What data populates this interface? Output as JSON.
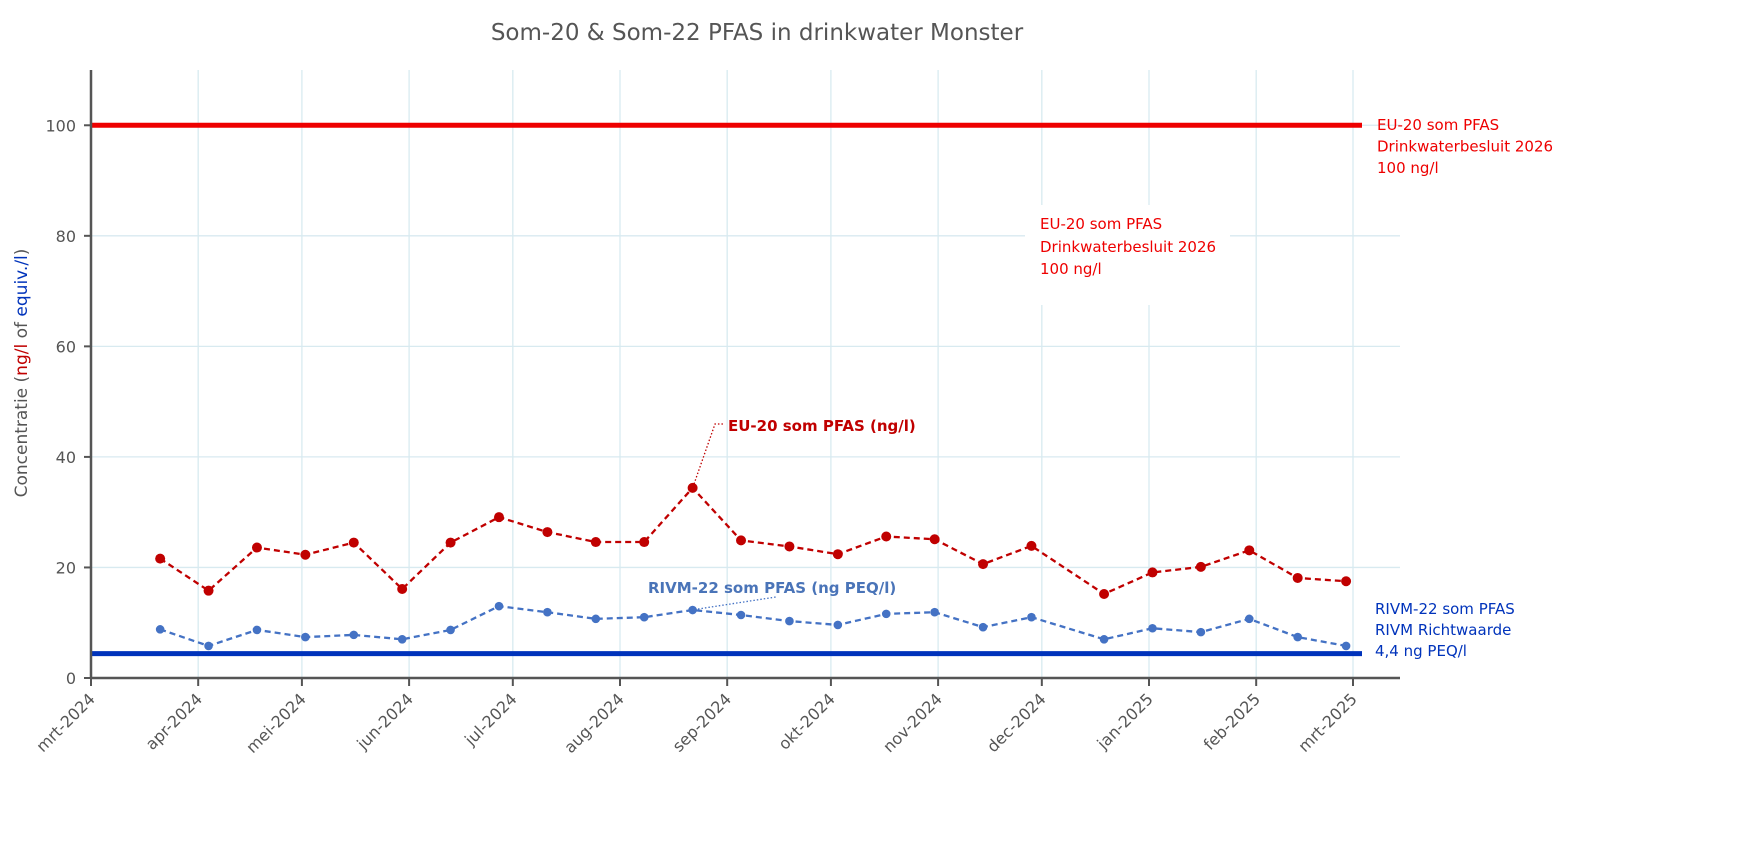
{
  "chart_data": {
    "type": "line",
    "title": "Som-20 & Som-22 PFAS in drinkwater Monster",
    "ylabel_parts": [
      {
        "text": "Concentratie (",
        "color": "#555555"
      },
      {
        "text": "ng/l",
        "color": "#c00000"
      },
      {
        "text": " of ",
        "color": "#555555"
      },
      {
        "text": "equiv./l",
        "color": "#0033bb"
      },
      {
        "text": ")",
        "color": "#555555"
      }
    ],
    "xlabel": "",
    "ylim": [
      0,
      110
    ],
    "yticks": [
      0,
      20,
      40,
      60,
      80,
      100
    ],
    "xlim": [
      "2024-03-01",
      "2025-03-01"
    ],
    "xticks": [
      {
        "date": "2024-03-01",
        "label": "mrt-2024"
      },
      {
        "date": "2024-04-01",
        "label": "apr-2024"
      },
      {
        "date": "2024-05-01",
        "label": "mei-2024"
      },
      {
        "date": "2024-06-01",
        "label": "jun-2024"
      },
      {
        "date": "2024-07-01",
        "label": "jul-2024"
      },
      {
        "date": "2024-08-01",
        "label": "aug-2024"
      },
      {
        "date": "2024-09-01",
        "label": "sep-2024"
      },
      {
        "date": "2024-10-01",
        "label": "okt-2024"
      },
      {
        "date": "2024-11-01",
        "label": "nov-2024"
      },
      {
        "date": "2024-12-01",
        "label": "dec-2024"
      },
      {
        "date": "2025-01-01",
        "label": "jan-2025"
      },
      {
        "date": "2025-02-01",
        "label": "feb-2025"
      },
      {
        "date": "2025-03-01",
        "label": "mrt-2025"
      }
    ],
    "grid": true,
    "x": [
      "2024-03-21",
      "2024-04-04",
      "2024-04-18",
      "2024-05-02",
      "2024-05-16",
      "2024-05-30",
      "2024-06-13",
      "2024-06-27",
      "2024-07-11",
      "2024-07-25",
      "2024-08-08",
      "2024-08-22",
      "2024-09-05",
      "2024-09-19",
      "2024-10-03",
      "2024-10-17",
      "2024-10-31",
      "2024-11-14",
      "2024-11-28",
      "2024-12-19",
      "2025-01-02",
      "2025-01-16",
      "2025-01-30",
      "2025-02-13",
      "2025-02-27"
    ],
    "series": [
      {
        "name": "EU-20 som PFAS (ng/l)",
        "color": "#c00000",
        "values": [
          21.6,
          15.8,
          23.6,
          22.3,
          24.5,
          16.1,
          24.5,
          29.1,
          26.4,
          24.6,
          24.6,
          34.4,
          24.9,
          23.8,
          22.4,
          25.6,
          25.1,
          20.6,
          23.9,
          15.2,
          19.1,
          20.1,
          23.1,
          18.1,
          17.5
        ]
      },
      {
        "name": "RIVM-22 som PFAS (ng PEQ/l)",
        "color": "#4472c4",
        "values": [
          8.8,
          5.8,
          8.7,
          7.4,
          7.8,
          7.0,
          8.7,
          13.0,
          11.9,
          10.7,
          11.0,
          12.3,
          11.4,
          10.3,
          9.6,
          11.6,
          11.9,
          9.2,
          11.0,
          7.0,
          9.0,
          8.3,
          10.7,
          7.4,
          5.8
        ]
      }
    ],
    "reference_lines": [
      {
        "value": 100,
        "color": "#ee0000",
        "label": [
          "EU-20 som PFAS",
          "Drinkwaterbesluit 2026",
          "100 ng/l"
        ]
      },
      {
        "value": 4.4,
        "color": "#0033bb",
        "label": [
          "RIVM-22 som PFAS",
          "RIVM Richtwaarde",
          "4,4 ng PEQ/l"
        ]
      }
    ],
    "annotations": {
      "eu_series_label": "EU-20 som PFAS (ng/l)",
      "rivm_series_label": "RIVM-22 som PFAS (ng PEQ/l)",
      "eu_box_label": [
        "EU-20 som PFAS",
        "Drinkwaterbesluit 2026",
        "100 ng/l"
      ]
    }
  }
}
